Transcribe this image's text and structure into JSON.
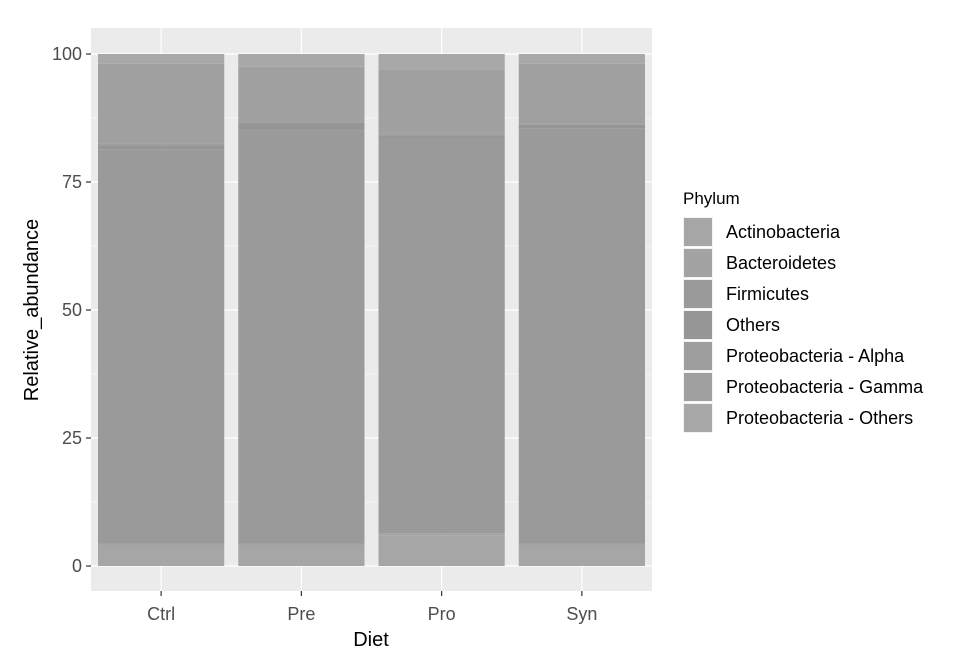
{
  "chart_data": {
    "type": "bar",
    "stacked": true,
    "xlabel": "Diet",
    "ylabel": "Relative_abundance",
    "categories": [
      "Ctrl",
      "Pre",
      "Pro",
      "Syn"
    ],
    "ylim": [
      0,
      100
    ],
    "yticks": [
      "0",
      "25",
      "50",
      "75",
      "100"
    ],
    "grid": true,
    "legend_position": "right",
    "legend_title": "Phylum",
    "series": [
      {
        "name": "Actinobacteria",
        "color": "#a6a6a6",
        "values": [
          4.0,
          4.0,
          6.0,
          4.0
        ]
      },
      {
        "name": "Bacteroidetes",
        "color": "#a3a3a3",
        "values": [
          0.4,
          0.4,
          0.4,
          0.4
        ]
      },
      {
        "name": "Firmicutes",
        "color": "#9a9a9a",
        "values": [
          77.0,
          80.6,
          77.2,
          81.1
        ]
      },
      {
        "name": "Others",
        "color": "#969696",
        "values": [
          0.8,
          1.6,
          0.5,
          0.7
        ]
      },
      {
        "name": "Proteobacteria - Alpha",
        "color": "#9e9e9e",
        "values": [
          0.3,
          0.3,
          0.3,
          0.3
        ]
      },
      {
        "name": "Proteobacteria - Gamma",
        "color": "#a0a0a0",
        "values": [
          15.6,
          10.6,
          12.6,
          11.6
        ]
      },
      {
        "name": "Proteobacteria - Others",
        "color": "#a8a8a8",
        "values": [
          1.9,
          2.5,
          3.0,
          1.9
        ]
      }
    ]
  },
  "colors": {
    "panel_background": "#ebebeb",
    "grid_major": "#ffffff",
    "grid_minor": "#f5f5f5"
  }
}
